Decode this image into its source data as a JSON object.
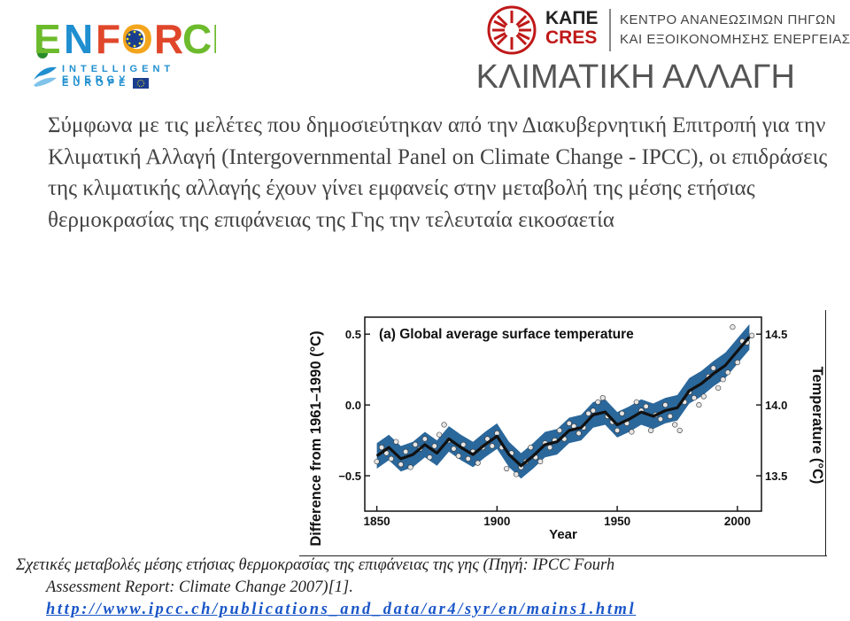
{
  "logos": {
    "left": {
      "name": "ENFORCE",
      "sub": "INTELLIGENT ENERGY",
      "sub2": "EUROPE"
    },
    "right": {
      "line1": "ΚΑΠΕ",
      "line2": "CRES",
      "desc1": "ΚΕΝΤΡΟ ΑΝΑΝΕΩΣΙΜΩΝ ΠΗΓΩΝ",
      "desc2": "ΚΑΙ ΕΞΟΙΚΟΝΟΜΗΣΗΣ ΕΝΕΡΓΕΙΑΣ"
    }
  },
  "slide": {
    "title": "ΚΛΙΜΑΤΙΚΗ ΑΛΛΑΓΗ",
    "body": "Σύμφωνα με τις μελέτες που δημοσιεύτηκαν από την Διακυβερνητική Επιτροπή για την Κλιματική Αλλαγή (Intergovernmental Panel on Climate Change - IPCC), οι επιδράσεις της κλιματικής αλλαγής έχουν γίνει εμφανείς στην μεταβολή της μέσης ετήσιας θερμοκρασίας της επιφάνειας της Γης την τελευταία εικοσαετία",
    "caption_line1": "Σχετικές μεταβολές μέσης ετήσιας θερμοκρασίας της επιφάνειας της γης (Πηγή: IPCC Fourh",
    "caption_line2": "Assessment Report: Climate Change 2007)[1].",
    "url": "http://www.ipcc.ch/publications_and_data/ar4/syr/en/mains1.html"
  },
  "colors": {
    "band": "#1f5f96",
    "line": "#111111",
    "point": "#e6e6e6",
    "url": "#1a56c8"
  },
  "chart_data": {
    "type": "line",
    "title": "(a) Global average surface temperature",
    "xlabel": "Year",
    "ylabel": "Difference from 1961–1990 (°C)",
    "ylabel_right": "Temperature (°C)",
    "xlim": [
      1845,
      2010
    ],
    "ylim": [
      -0.75,
      0.62
    ],
    "xticks": [
      1850,
      1900,
      1950,
      2000
    ],
    "xtick_labels": [
      "1850",
      "1900",
      "1950",
      "2000"
    ],
    "yticks": [
      0.5,
      0.0,
      -0.5
    ],
    "ytick_labels": [
      "0.5",
      "0.0",
      "−0.5"
    ],
    "yticks_right": [
      14.5,
      14.0,
      13.5
    ],
    "ytick_labels_right": [
      "14.5",
      "14.0",
      "13.5"
    ],
    "right_offset": 14.0,
    "band_halfwidth": 0.09,
    "series": [
      {
        "x": [
          1850,
          1855,
          1860,
          1865,
          1870,
          1875,
          1880,
          1885,
          1890,
          1895,
          1900,
          1905,
          1910,
          1915,
          1920,
          1925,
          1930,
          1935,
          1940,
          1945,
          1950,
          1955,
          1960,
          1965,
          1970,
          1975,
          1980,
          1985,
          1990,
          1995,
          2000,
          2005
        ],
        "y": [
          -0.36,
          -0.3,
          -0.38,
          -0.35,
          -0.28,
          -0.34,
          -0.24,
          -0.3,
          -0.35,
          -0.28,
          -0.22,
          -0.35,
          -0.43,
          -0.36,
          -0.28,
          -0.26,
          -0.18,
          -0.16,
          -0.07,
          -0.05,
          -0.14,
          -0.1,
          -0.05,
          -0.08,
          -0.04,
          -0.02,
          0.1,
          0.15,
          0.22,
          0.28,
          0.38,
          0.48
        ]
      }
    ],
    "points": {
      "x": [
        1850,
        1852,
        1854,
        1856,
        1858,
        1860,
        1862,
        1864,
        1866,
        1868,
        1870,
        1872,
        1874,
        1876,
        1878,
        1880,
        1882,
        1884,
        1886,
        1888,
        1890,
        1892,
        1894,
        1896,
        1898,
        1900,
        1902,
        1904,
        1906,
        1908,
        1910,
        1912,
        1914,
        1916,
        1918,
        1920,
        1922,
        1924,
        1926,
        1928,
        1930,
        1932,
        1934,
        1936,
        1938,
        1940,
        1942,
        1944,
        1946,
        1948,
        1950,
        1952,
        1954,
        1956,
        1958,
        1960,
        1962,
        1964,
        1966,
        1968,
        1970,
        1972,
        1974,
        1976,
        1978,
        1980,
        1982,
        1984,
        1986,
        1988,
        1990,
        1992,
        1994,
        1996,
        1998,
        2000,
        2002,
        2004,
        2006
      ],
      "y": [
        -0.4,
        -0.3,
        -0.34,
        -0.38,
        -0.26,
        -0.42,
        -0.33,
        -0.44,
        -0.28,
        -0.31,
        -0.24,
        -0.37,
        -0.29,
        -0.21,
        -0.14,
        -0.25,
        -0.31,
        -0.36,
        -0.28,
        -0.38,
        -0.33,
        -0.41,
        -0.3,
        -0.24,
        -0.29,
        -0.2,
        -0.3,
        -0.45,
        -0.34,
        -0.49,
        -0.44,
        -0.4,
        -0.3,
        -0.37,
        -0.4,
        -0.27,
        -0.3,
        -0.25,
        -0.18,
        -0.24,
        -0.13,
        -0.15,
        -0.2,
        -0.16,
        -0.06,
        -0.04,
        0.02,
        0.05,
        -0.08,
        -0.12,
        -0.18,
        -0.06,
        -0.13,
        -0.19,
        0.02,
        -0.04,
        -0.01,
        -0.18,
        -0.07,
        -0.1,
        0.0,
        -0.08,
        -0.14,
        -0.18,
        0.02,
        0.09,
        0.05,
        0.0,
        0.06,
        0.2,
        0.26,
        0.12,
        0.18,
        0.23,
        0.55,
        0.3,
        0.45,
        0.44,
        0.49
      ]
    }
  }
}
